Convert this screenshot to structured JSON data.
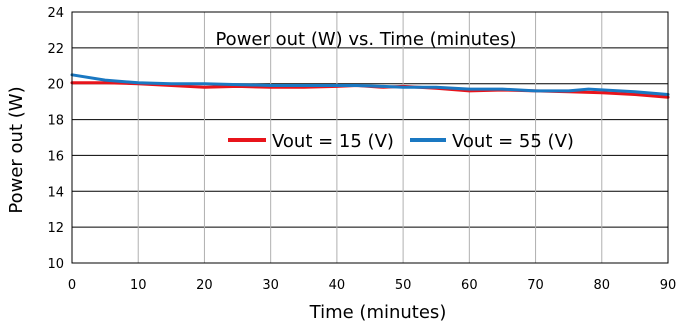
{
  "chart_data": {
    "type": "line",
    "title": "Power out (W) vs. Time (minutes)",
    "xlabel": "Time (minutes)",
    "ylabel": "Power out (W)",
    "xlim": [
      0,
      90
    ],
    "ylim": [
      10,
      24
    ],
    "x_ticks": [
      0,
      10,
      20,
      30,
      40,
      50,
      60,
      70,
      80,
      90
    ],
    "y_ticks": [
      10,
      12,
      14,
      16,
      18,
      20,
      22,
      24
    ],
    "grid": true,
    "legend_position": "center-right",
    "series": [
      {
        "name": "Vout = 15 (V)",
        "color": "#e8141b",
        "x": [
          0,
          5,
          10,
          15,
          20,
          25,
          30,
          35,
          40,
          43,
          47,
          50,
          55,
          60,
          65,
          70,
          75,
          80,
          85,
          90
        ],
        "y": [
          20.05,
          20.05,
          20.0,
          19.9,
          19.8,
          19.85,
          19.8,
          19.8,
          19.85,
          19.9,
          19.8,
          19.85,
          19.75,
          19.6,
          19.65,
          19.6,
          19.55,
          19.5,
          19.4,
          19.25
        ]
      },
      {
        "name": "Vout = 55 (V)",
        "color": "#1a78c2",
        "x": [
          0,
          5,
          10,
          15,
          20,
          25,
          30,
          35,
          40,
          43,
          47,
          50,
          55,
          60,
          65,
          70,
          75,
          78,
          85,
          90
        ],
        "y": [
          20.5,
          20.2,
          20.05,
          20.0,
          20.0,
          19.95,
          19.9,
          19.9,
          19.9,
          19.9,
          19.85,
          19.8,
          19.8,
          19.7,
          19.7,
          19.6,
          19.6,
          19.7,
          19.55,
          19.4
        ]
      }
    ]
  }
}
